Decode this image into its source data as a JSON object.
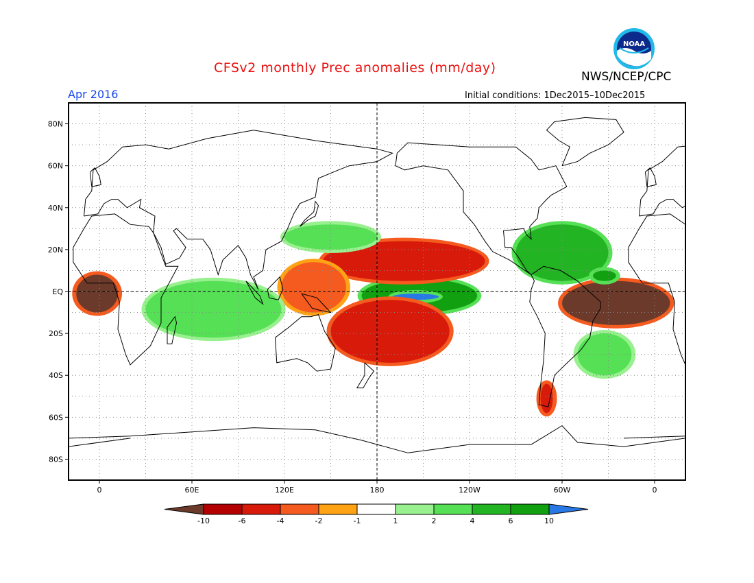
{
  "title": "CFSv2 monthly Prec anomalies (mm/day)",
  "agency": "NWS/NCEP/CPC",
  "logo_text": "NOAA",
  "valid_month": "Apr 2016",
  "initial_conditions": "Initial conditions: 1Dec2015–10Dec2015",
  "colors": {
    "title": "#e8100f",
    "month": "#1746f0",
    "coast": "#000000",
    "grid": "#888888"
  },
  "map": {
    "projection": "cylindrical equidistant",
    "lon_range": [
      -20,
      380
    ],
    "lat_range": [
      -90,
      90
    ],
    "y_ticks": [
      {
        "lat": 80,
        "label": "80N"
      },
      {
        "lat": 60,
        "label": "60N"
      },
      {
        "lat": 40,
        "label": "40N"
      },
      {
        "lat": 20,
        "label": "20N"
      },
      {
        "lat": 0,
        "label": "EQ"
      },
      {
        "lat": -20,
        "label": "20S"
      },
      {
        "lat": -40,
        "label": "40S"
      },
      {
        "lat": -60,
        "label": "60S"
      },
      {
        "lat": -80,
        "label": "80S"
      }
    ],
    "x_ticks": [
      {
        "lon": 0,
        "label": "0"
      },
      {
        "lon": 60,
        "label": "60E"
      },
      {
        "lon": 120,
        "label": "120E"
      },
      {
        "lon": 180,
        "label": "180"
      },
      {
        "lon": 240,
        "label": "120W"
      },
      {
        "lon": 300,
        "label": "60W"
      },
      {
        "lon": 360,
        "label": "0"
      }
    ],
    "reference_lines": [
      "equator dashed",
      "180 meridian dashed"
    ],
    "grid": "dotted"
  },
  "colorbar": {
    "labels": [
      "-10",
      "-6",
      "-4",
      "-2",
      "-1",
      "1",
      "2",
      "4",
      "6",
      "10"
    ],
    "colors": [
      "#6b3a2a",
      "#b40000",
      "#d81a0b",
      "#f55a1e",
      "#ffa214",
      "#ffffff",
      "#98f08f",
      "#55e055",
      "#22b422",
      "#10a010",
      "#2878e6"
    ]
  },
  "anomalies": [
    {
      "name": "wet-central-pacific-equatorial",
      "sign": "wet",
      "level": 6,
      "lon": [
        170,
        245
      ],
      "lat": [
        -10,
        6
      ]
    },
    {
      "name": "wet-central-pacific-core",
      "sign": "wet",
      "level": 10,
      "lon": [
        190,
        220
      ],
      "lat": [
        -4,
        -1
      ]
    },
    {
      "name": "dry-north-pacific-itcz-band",
      "sign": "dry",
      "level": -4,
      "lon": [
        145,
        250
      ],
      "lat": [
        5,
        24
      ]
    },
    {
      "name": "dry-south-pacific-spcz-band",
      "sign": "dry",
      "level": -4,
      "lon": [
        150,
        227
      ],
      "lat": [
        -34,
        -4
      ]
    },
    {
      "name": "dry-maritime-continent",
      "sign": "dry",
      "level": -2,
      "lon": [
        118,
        160
      ],
      "lat": [
        -10,
        14
      ]
    },
    {
      "name": "dry-equatorial-atlantic",
      "sign": "dry",
      "level": -10,
      "lon": [
        -15,
        12
      ],
      "lat": [
        -10,
        8
      ]
    },
    {
      "name": "dry-northeast-brazil-atlantic",
      "sign": "dry",
      "level": -10,
      "lon": [
        300,
        370
      ],
      "lat": [
        -16,
        5
      ]
    },
    {
      "name": "wet-caribbean-north-atlantic",
      "sign": "wet",
      "level": 4,
      "lon": [
        270,
        330
      ],
      "lat": [
        5,
        32
      ]
    },
    {
      "name": "wet-north-of-equator-atlantic",
      "sign": "wet",
      "level": 6,
      "lon": [
        320,
        335
      ],
      "lat": [
        5,
        10
      ]
    },
    {
      "name": "wet-indian-ocean-band",
      "sign": "wet",
      "level": 2,
      "lon": [
        30,
        118
      ],
      "lat": [
        -22,
        5
      ]
    },
    {
      "name": "wet-north-west-pacific",
      "sign": "wet",
      "level": 2,
      "lon": [
        120,
        180
      ],
      "lat": [
        20,
        32
      ]
    },
    {
      "name": "dry-southern-south-america",
      "sign": "dry",
      "level": -4,
      "lon": [
        286,
        294
      ],
      "lat": [
        -58,
        -44
      ]
    },
    {
      "name": "wet-south-atlantic",
      "sign": "wet",
      "level": 2,
      "lon": [
        310,
        345
      ],
      "lat": [
        -40,
        -20
      ]
    }
  ]
}
